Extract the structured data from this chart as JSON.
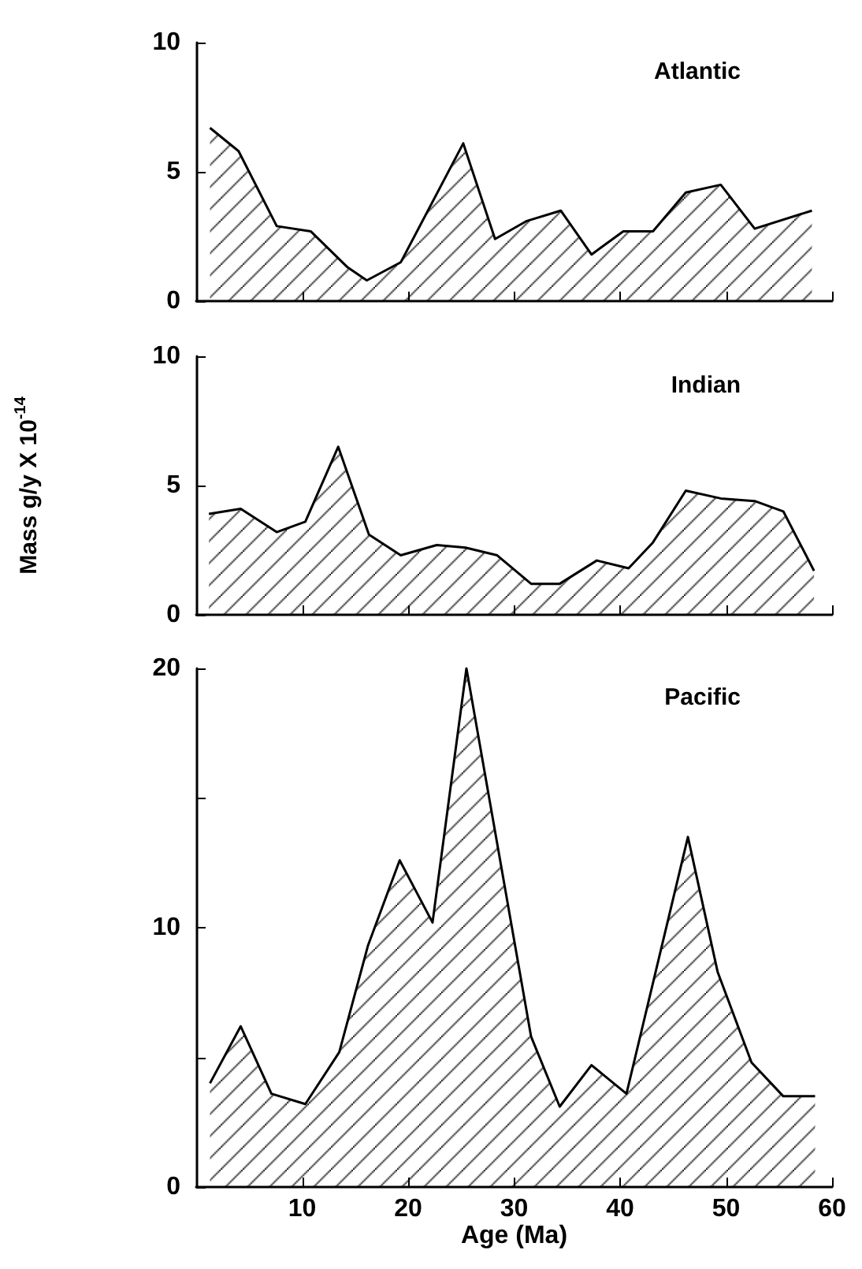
{
  "chart_data": [
    {
      "type": "area",
      "title": "Atlantic",
      "x": [
        1.3,
        4.0,
        7.6,
        10.8,
        14.3,
        16.1,
        19.3,
        25.2,
        28.2,
        31.2,
        34.4,
        37.3,
        40.3,
        43.1,
        46.2,
        49.5,
        52.7,
        58.1
      ],
      "values": [
        6.7,
        5.8,
        2.9,
        2.7,
        1.3,
        0.8,
        1.5,
        6.1,
        2.4,
        3.1,
        3.5,
        1.8,
        2.7,
        2.7,
        4.2,
        4.5,
        2.8,
        3.5
      ],
      "color": "#000000",
      "xlim": [
        0,
        60
      ],
      "xticks": [
        10,
        20,
        30,
        40,
        50,
        60
      ],
      "ylim": [
        0,
        10
      ],
      "yticks": [
        0,
        5,
        10
      ],
      "tick_labels": "y",
      "grid": false,
      "marker": "none"
    },
    {
      "type": "area",
      "title": "Indian",
      "ylabel": "Mass g/y X 10$^{-14}$",
      "x": [
        1.2,
        4.2,
        7.6,
        10.3,
        13.4,
        16.3,
        19.3,
        22.7,
        25.4,
        28.4,
        31.6,
        34.3,
        37.8,
        40.8,
        43.1,
        46.2,
        49.5,
        52.7,
        55.4,
        58.3
      ],
      "values": [
        3.9,
        4.1,
        3.2,
        3.6,
        6.5,
        3.1,
        2.3,
        2.7,
        2.6,
        2.3,
        1.2,
        1.2,
        2.1,
        1.8,
        2.8,
        4.8,
        4.5,
        4.4,
        4.0,
        1.7
      ],
      "color": "#000000",
      "xlim": [
        0,
        60
      ],
      "xticks": [
        10,
        20,
        30,
        40,
        50,
        60
      ],
      "ylim": [
        0,
        10
      ],
      "yticks": [
        0,
        5,
        10
      ],
      "tick_labels": "y",
      "grid": false,
      "marker": "none"
    },
    {
      "type": "area",
      "title": "Pacific",
      "xlabel": "Age (Ma)",
      "x": [
        1.3,
        4.2,
        7.1,
        10.3,
        13.5,
        16.2,
        19.2,
        22.3,
        25.5,
        31.6,
        34.3,
        37.3,
        40.6,
        46.4,
        49.2,
        52.4,
        55.4,
        58.4
      ],
      "values": [
        4.0,
        6.2,
        3.6,
        3.2,
        5.2,
        9.3,
        12.6,
        10.2,
        20,
        5.8,
        3.1,
        4.7,
        3.6,
        13.5,
        8.3,
        4.8,
        3.5,
        3.5
      ],
      "color": "#000000",
      "xlim": [
        0,
        60
      ],
      "xticks": [
        10,
        20,
        30,
        40,
        50,
        60
      ],
      "ylim": [
        0,
        20
      ],
      "yticks": [
        0,
        {
          "value": 5,
          "label": null
        },
        10,
        {
          "value": 15,
          "label": null
        },
        20
      ],
      "grid": false,
      "marker": "none"
    }
  ]
}
